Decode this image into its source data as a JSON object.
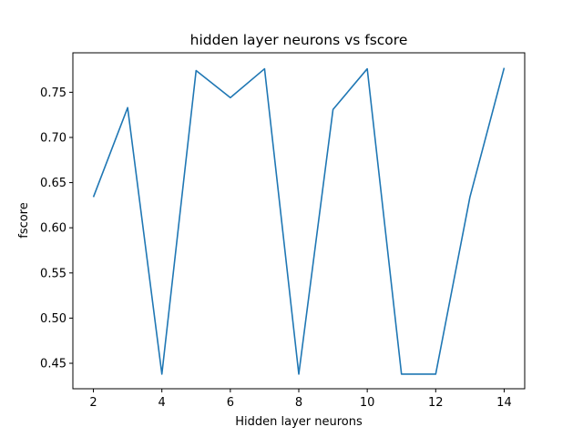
{
  "chart_data": {
    "type": "line",
    "title": "hidden layer neurons vs fscore",
    "xlabel": "Hidden layer neurons",
    "ylabel": "fscore",
    "x": [
      2,
      3,
      4,
      5,
      6,
      7,
      8,
      9,
      10,
      11,
      12,
      13,
      14
    ],
    "series": [
      {
        "values": [
          0.634,
          0.733,
          0.438,
          0.774,
          0.744,
          0.776,
          0.438,
          0.731,
          0.776,
          0.438,
          0.438,
          0.634,
          0.777
        ],
        "color": "#1f77b4"
      }
    ],
    "xlim": [
      1.4,
      14.6
    ],
    "ylim": [
      0.4218,
      0.7937
    ],
    "xticks": [
      2,
      4,
      6,
      8,
      10,
      12,
      14
    ],
    "xtick_labels": [
      "2",
      "4",
      "6",
      "8",
      "10",
      "12",
      "14"
    ],
    "yticks": [
      0.45,
      0.5,
      0.55,
      0.6,
      0.65,
      0.7,
      0.75
    ],
    "ytick_labels": [
      "0.45",
      "0.50",
      "0.55",
      "0.60",
      "0.65",
      "0.70",
      "0.75"
    ],
    "grid": false,
    "legend": "none"
  }
}
